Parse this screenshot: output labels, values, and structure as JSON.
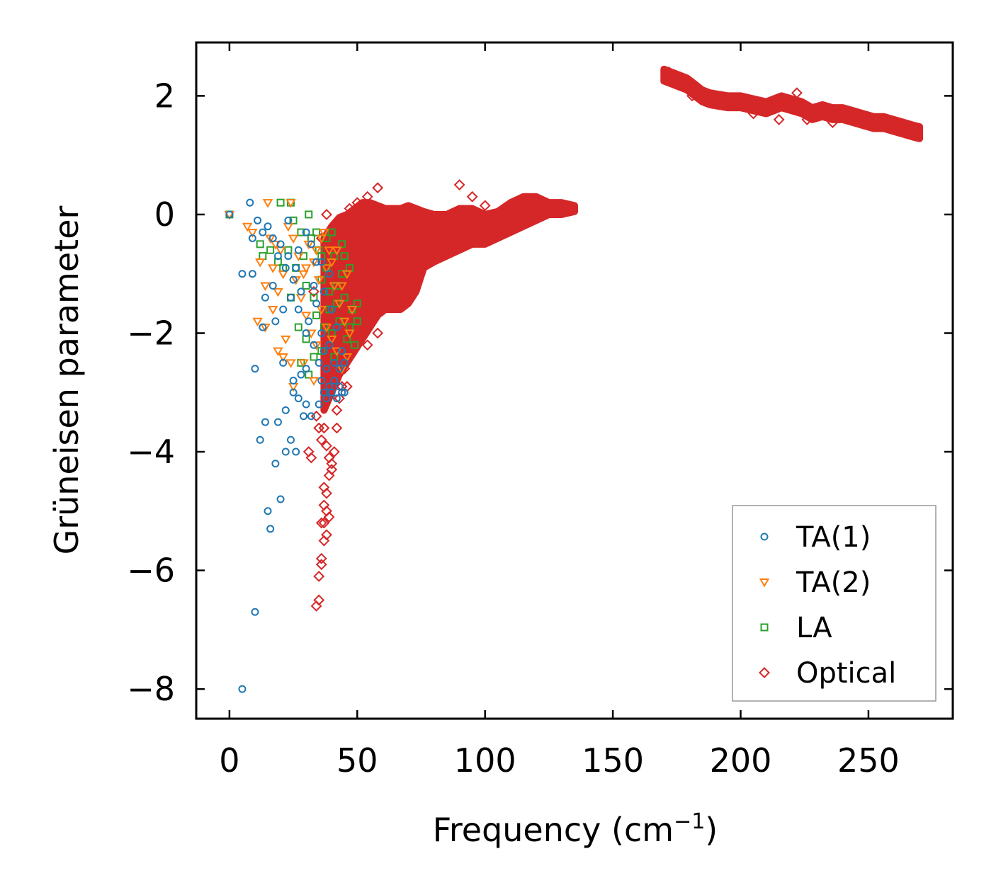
{
  "chart_data": {
    "type": "scatter",
    "title": "",
    "xlabel": "Frequency (cm",
    "xlabel_superscript": "−1",
    "xlabel_suffix": ")",
    "ylabel": "Grüneisen parameter",
    "xlim": [
      -13,
      283
    ],
    "ylim": [
      -8.5,
      2.9
    ],
    "grid": false,
    "legend_position": "lower-right",
    "x_ticks": [
      0,
      50,
      100,
      150,
      200,
      250
    ],
    "x_tick_labels": [
      "0",
      "50",
      "100",
      "150",
      "200",
      "250"
    ],
    "y_ticks": [
      -8,
      -6,
      -4,
      -2,
      0,
      2
    ],
    "y_tick_labels": [
      "−8",
      "−6",
      "−4",
      "−2",
      "0",
      "2"
    ],
    "series": [
      {
        "name": "TA(1)",
        "marker": "circle",
        "color": "#1f77b4",
        "points": [
          [
            0,
            0
          ],
          [
            5,
            -8.0
          ],
          [
            10,
            -6.7
          ],
          [
            16,
            -5.3
          ],
          [
            15,
            -5.0
          ],
          [
            20,
            -4.8
          ],
          [
            18,
            -4.2
          ],
          [
            22,
            -4.0
          ],
          [
            12,
            -3.8
          ],
          [
            14,
            -3.5
          ],
          [
            19,
            -3.5
          ],
          [
            24,
            -3.8
          ],
          [
            26,
            -4.0
          ],
          [
            22,
            -3.3
          ],
          [
            25,
            -3.0
          ],
          [
            27,
            -3.1
          ],
          [
            10,
            -2.6
          ],
          [
            21,
            -2.5
          ],
          [
            25,
            -2.8
          ],
          [
            28,
            -2.7
          ],
          [
            30,
            -3.2
          ],
          [
            32,
            -3.4
          ],
          [
            13,
            -1.9
          ],
          [
            18,
            -1.8
          ],
          [
            21,
            -1.6
          ],
          [
            24,
            -1.4
          ],
          [
            27,
            -1.6
          ],
          [
            30,
            -2.0
          ],
          [
            14,
            -1.4
          ],
          [
            17,
            -1.2
          ],
          [
            19,
            -0.7
          ],
          [
            22,
            -0.9
          ],
          [
            25,
            -1.1
          ],
          [
            28,
            -1.3
          ],
          [
            5,
            -1.0
          ],
          [
            9,
            -1.0
          ],
          [
            11,
            -0.1
          ],
          [
            13,
            -0.3
          ],
          [
            15,
            -0.2
          ],
          [
            17,
            -0.4
          ],
          [
            20,
            -0.5
          ],
          [
            23,
            -0.7
          ],
          [
            26,
            -0.9
          ],
          [
            8,
            0.2
          ],
          [
            9,
            -0.4
          ],
          [
            31,
            -1.8
          ],
          [
            33,
            -2.2
          ],
          [
            35,
            -2.5
          ],
          [
            36,
            -2.8
          ],
          [
            37,
            -3.0
          ],
          [
            38,
            -3.1
          ],
          [
            39,
            -2.9
          ],
          [
            40,
            -3.0
          ],
          [
            41,
            -2.8
          ],
          [
            42,
            -3.1
          ],
          [
            43,
            -2.9
          ],
          [
            44,
            -3.0
          ],
          [
            45,
            -3.0
          ],
          [
            35,
            -3.2
          ],
          [
            38,
            -2.6
          ],
          [
            41,
            -2.5
          ],
          [
            43,
            -2.6
          ],
          [
            45,
            -2.5
          ],
          [
            36,
            -2.0
          ],
          [
            39,
            -2.2
          ],
          [
            42,
            -1.9
          ],
          [
            44,
            -2.3
          ],
          [
            34,
            -1.5
          ],
          [
            37,
            -1.3
          ],
          [
            40,
            -1.6
          ],
          [
            36,
            -0.8
          ],
          [
            39,
            -1.0
          ],
          [
            33,
            -1.2
          ],
          [
            30,
            -2.6
          ],
          [
            29,
            -3.4
          ],
          [
            23,
            -0.1
          ],
          [
            27,
            -0.6
          ],
          [
            30,
            -0.3
          ],
          [
            32,
            -0.5
          ],
          [
            34,
            -0.8
          ],
          [
            37,
            -2.3
          ]
        ]
      },
      {
        "name": "TA(2)",
        "marker": "triangle-down",
        "color": "#ff7f0e",
        "points": [
          [
            0,
            0
          ],
          [
            7,
            -0.2
          ],
          [
            9,
            -0.3
          ],
          [
            12,
            -0.8
          ],
          [
            14,
            -1.2
          ],
          [
            15,
            0.2
          ],
          [
            16,
            -0.4
          ],
          [
            17,
            -0.9
          ],
          [
            19,
            -1.3
          ],
          [
            11,
            -1.8
          ],
          [
            14,
            -1.9
          ],
          [
            17,
            -1.6
          ],
          [
            19,
            -2.3
          ],
          [
            21,
            -2.4
          ],
          [
            22,
            -2.1
          ],
          [
            24,
            -2.5
          ],
          [
            20,
            -0.6
          ],
          [
            23,
            -0.2
          ],
          [
            25,
            -0.4
          ],
          [
            27,
            -0.7
          ],
          [
            29,
            -1.0
          ],
          [
            31,
            -0.5
          ],
          [
            33,
            -0.8
          ],
          [
            35,
            -1.1
          ],
          [
            37,
            -0.3
          ],
          [
            39,
            -0.6
          ],
          [
            41,
            -1.2
          ],
          [
            43,
            -1.5
          ],
          [
            45,
            -1.8
          ],
          [
            47,
            -2.0
          ],
          [
            28,
            -1.4
          ],
          [
            30,
            -1.7
          ],
          [
            32,
            -2.0
          ],
          [
            34,
            -2.2
          ],
          [
            36,
            -1.6
          ],
          [
            38,
            -1.9
          ],
          [
            40,
            -2.1
          ],
          [
            42,
            -2.3
          ],
          [
            44,
            -2.6
          ],
          [
            46,
            -2.4
          ],
          [
            26,
            -1.1
          ],
          [
            30,
            -0.9
          ],
          [
            34,
            -0.6
          ],
          [
            38,
            -0.9
          ],
          [
            42,
            -0.6
          ],
          [
            46,
            -1.0
          ],
          [
            48,
            -1.6
          ],
          [
            44,
            -1.2
          ],
          [
            40,
            -0.8
          ],
          [
            36,
            -0.4
          ],
          [
            24,
            0.2
          ],
          [
            21,
            -1.0
          ],
          [
            18,
            -0.5
          ],
          [
            25,
            -2.9
          ],
          [
            33,
            -2.8
          ],
          [
            29,
            -2.5
          ]
        ]
      },
      {
        "name": "LA",
        "marker": "square",
        "color": "#2ca02c",
        "points": [
          [
            0,
            0
          ],
          [
            20,
            0.2
          ],
          [
            24,
            0.2
          ],
          [
            25,
            -0.1
          ],
          [
            31,
            0.0
          ],
          [
            28,
            -0.3
          ],
          [
            12,
            -0.5
          ],
          [
            13,
            -0.7
          ],
          [
            16,
            -0.6
          ],
          [
            19,
            -0.8
          ],
          [
            21,
            -0.9
          ],
          [
            23,
            -0.6
          ],
          [
            26,
            -0.9
          ],
          [
            29,
            -0.7
          ],
          [
            32,
            -0.4
          ],
          [
            35,
            -0.6
          ],
          [
            38,
            -0.9
          ],
          [
            41,
            -0.7
          ],
          [
            44,
            -1.0
          ],
          [
            47,
            -0.9
          ],
          [
            30,
            -1.2
          ],
          [
            33,
            -1.4
          ],
          [
            36,
            -1.1
          ],
          [
            39,
            -1.3
          ],
          [
            42,
            -1.5
          ],
          [
            45,
            -1.4
          ],
          [
            48,
            -1.6
          ],
          [
            50,
            -1.8
          ],
          [
            34,
            -1.7
          ],
          [
            37,
            -1.9
          ],
          [
            40,
            -2.0
          ],
          [
            43,
            -1.8
          ],
          [
            46,
            -2.1
          ],
          [
            49,
            -2.2
          ],
          [
            27,
            -1.9
          ],
          [
            30,
            -2.1
          ],
          [
            33,
            -2.4
          ],
          [
            36,
            -2.3
          ],
          [
            39,
            -1.6
          ],
          [
            42,
            -1.2
          ],
          [
            45,
            -0.7
          ],
          [
            38,
            -0.4
          ],
          [
            40,
            -0.3
          ],
          [
            44,
            -0.5
          ],
          [
            24,
            -1.4
          ],
          [
            28,
            -2.5
          ],
          [
            31,
            -2.7
          ],
          [
            47,
            -1.9
          ],
          [
            50,
            -1.5
          ],
          [
            34,
            -0.3
          ],
          [
            41,
            -2.4
          ],
          [
            36,
            -0.7
          ]
        ]
      },
      {
        "name": "Optical",
        "marker": "diamond",
        "color": "#d62728",
        "dense_band": {
          "x_points": [
            37,
            40,
            43,
            46,
            49,
            52,
            55,
            58,
            61,
            64,
            67,
            70,
            73,
            76,
            80,
            85,
            90,
            95,
            100,
            105,
            110,
            115,
            120,
            125,
            130,
            135
          ],
          "upper": [
            -0.4,
            -0.2,
            -0.05,
            0.0,
            0.1,
            0.2,
            0.2,
            0.15,
            0.1,
            0.1,
            0.1,
            0.15,
            0.1,
            0.05,
            0.0,
            0.0,
            0.1,
            0.1,
            0.0,
            0.05,
            0.2,
            0.3,
            0.3,
            0.2,
            0.2,
            0.15
          ],
          "lower": [
            -3.3,
            -3.0,
            -2.7,
            -2.5,
            -2.3,
            -2.1,
            -1.9,
            -1.7,
            -1.6,
            -1.6,
            -1.6,
            -1.5,
            -1.3,
            -0.9,
            -0.8,
            -0.7,
            -0.6,
            -0.5,
            -0.5,
            -0.4,
            -0.3,
            -0.2,
            -0.1,
            0.0,
            0.0,
            0.05
          ]
        },
        "high_band": {
          "x_points": [
            170,
            173,
            176,
            179,
            182,
            185,
            188,
            195,
            200,
            205,
            210,
            213,
            216,
            220,
            224,
            228,
            232,
            236,
            240,
            244,
            248,
            252,
            256,
            260,
            264,
            268,
            270
          ],
          "center": [
            2.35,
            2.3,
            2.25,
            2.2,
            2.1,
            2.0,
            1.95,
            1.9,
            1.9,
            1.85,
            1.8,
            1.85,
            1.9,
            1.85,
            1.8,
            1.7,
            1.75,
            1.7,
            1.7,
            1.65,
            1.6,
            1.55,
            1.55,
            1.5,
            1.45,
            1.4,
            1.38
          ],
          "halfwidth": 0.1
        },
        "points": [
          [
            31,
            -4.0
          ],
          [
            32,
            -4.1
          ],
          [
            34,
            -3.4
          ],
          [
            35,
            -3.6
          ],
          [
            36,
            -3.8
          ],
          [
            37,
            -3.6
          ],
          [
            38,
            -3.9
          ],
          [
            39,
            -4.1
          ],
          [
            40,
            -4.2
          ],
          [
            41,
            -4.0
          ],
          [
            42,
            -3.6
          ],
          [
            37,
            -4.6
          ],
          [
            38,
            -4.7
          ],
          [
            37,
            -4.9
          ],
          [
            38,
            -5.0
          ],
          [
            37,
            -5.2
          ],
          [
            38,
            -5.4
          ],
          [
            36,
            -5.2
          ],
          [
            39,
            -5.1
          ],
          [
            37,
            -5.5
          ],
          [
            36,
            -5.8
          ],
          [
            36,
            -5.9
          ],
          [
            35,
            -6.1
          ],
          [
            34,
            -6.6
          ],
          [
            35,
            -6.5
          ],
          [
            39,
            -4.4
          ],
          [
            40,
            -4.3
          ],
          [
            33,
            -1.3
          ],
          [
            36,
            -0.4
          ],
          [
            38,
            0.0
          ],
          [
            47,
            0.1
          ],
          [
            50,
            0.2
          ],
          [
            54,
            0.3
          ],
          [
            58,
            0.45
          ],
          [
            48,
            -2.3
          ],
          [
            54,
            -2.2
          ],
          [
            58,
            -2.0
          ],
          [
            46,
            -2.9
          ],
          [
            42,
            -3.3
          ],
          [
            43,
            -3.1
          ],
          [
            44,
            -2.9
          ],
          [
            45,
            -2.6
          ],
          [
            90,
            0.5
          ],
          [
            95,
            0.3
          ],
          [
            100,
            0.15
          ],
          [
            172,
            2.4
          ],
          [
            181,
            2.0
          ],
          [
            215,
            1.6
          ],
          [
            226,
            1.6
          ],
          [
            236,
            1.55
          ],
          [
            205,
            1.7
          ],
          [
            222,
            2.05
          ]
        ]
      }
    ]
  },
  "legend": {
    "items": [
      {
        "label": "TA(1)"
      },
      {
        "label": "TA(2)"
      },
      {
        "label": "LA"
      },
      {
        "label": "Optical"
      }
    ]
  }
}
